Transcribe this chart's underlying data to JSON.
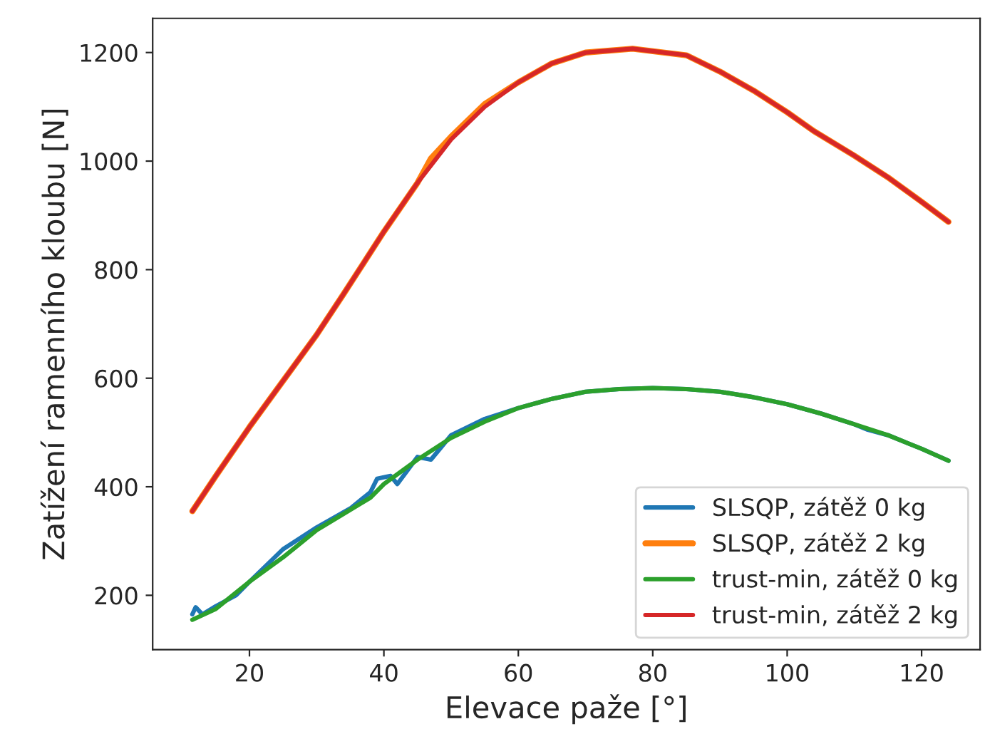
{
  "chart_data": {
    "type": "line",
    "xlabel": "Elevace paže [°]",
    "ylabel": "Zatížení ramenního kloubu [N]",
    "xlim": [
      5.6,
      128.7
    ],
    "ylim": [
      100,
      1263
    ],
    "xticks": [
      20,
      40,
      60,
      80,
      100,
      120
    ],
    "yticks": [
      200,
      400,
      600,
      800,
      1000,
      1200
    ],
    "grid": false,
    "legend": "bottom right",
    "marker": "none",
    "line_style": "solid",
    "series": [
      {
        "name": "SLSQP, zátěž 0 kg",
        "color": "#1f77b4",
        "x": [
          11.5,
          12,
          13,
          15,
          18,
          20,
          25,
          30,
          35,
          38,
          39,
          41,
          42,
          45,
          47,
          50,
          55,
          60,
          65,
          70,
          75,
          80,
          85,
          90,
          95,
          100,
          105,
          110,
          112,
          115,
          120,
          124
        ],
        "values": [
          165,
          178,
          165,
          180,
          200,
          225,
          285,
          325,
          360,
          390,
          415,
          420,
          405,
          455,
          450,
          495,
          525,
          545,
          562,
          575,
          580,
          582,
          580,
          575,
          565,
          552,
          535,
          515,
          505,
          495,
          470,
          448
        ]
      },
      {
        "name": "SLSQP, zátěž 2 kg",
        "color": "#ff7f0e",
        "x": [
          11.5,
          15,
          20,
          25,
          30,
          34,
          40,
          45,
          47,
          50,
          55,
          60,
          65,
          70,
          77,
          85,
          90,
          95,
          100,
          104,
          110,
          115,
          120,
          124
        ],
        "values": [
          355,
          420,
          510,
          595,
          680,
          755,
          870,
          960,
          1005,
          1045,
          1105,
          1145,
          1180,
          1200,
          1207,
          1195,
          1165,
          1130,
          1090,
          1055,
          1010,
          970,
          925,
          888
        ]
      },
      {
        "name": "trust-min, zátěž 0 kg",
        "color": "#2ca02c",
        "x": [
          11.5,
          15,
          20,
          25,
          30,
          34,
          38,
          40,
          45,
          50,
          55,
          60,
          65,
          70,
          75,
          80,
          85,
          90,
          95,
          100,
          105,
          110,
          115,
          120,
          124
        ],
        "values": [
          155,
          175,
          225,
          270,
          320,
          350,
          380,
          405,
          450,
          490,
          520,
          545,
          562,
          575,
          580,
          582,
          580,
          575,
          565,
          552,
          535,
          515,
          495,
          470,
          448
        ]
      },
      {
        "name": "trust-min, zátěž 2 kg",
        "color": "#d62728",
        "x": [
          11.5,
          15,
          20,
          25,
          30,
          34,
          40,
          45,
          50,
          55,
          60,
          65,
          70,
          77,
          85,
          90,
          95,
          100,
          104,
          110,
          115,
          120,
          124
        ],
        "values": [
          355,
          420,
          510,
          595,
          680,
          755,
          870,
          960,
          1040,
          1100,
          1145,
          1180,
          1200,
          1207,
          1195,
          1165,
          1130,
          1090,
          1055,
          1010,
          970,
          925,
          888
        ]
      }
    ]
  }
}
